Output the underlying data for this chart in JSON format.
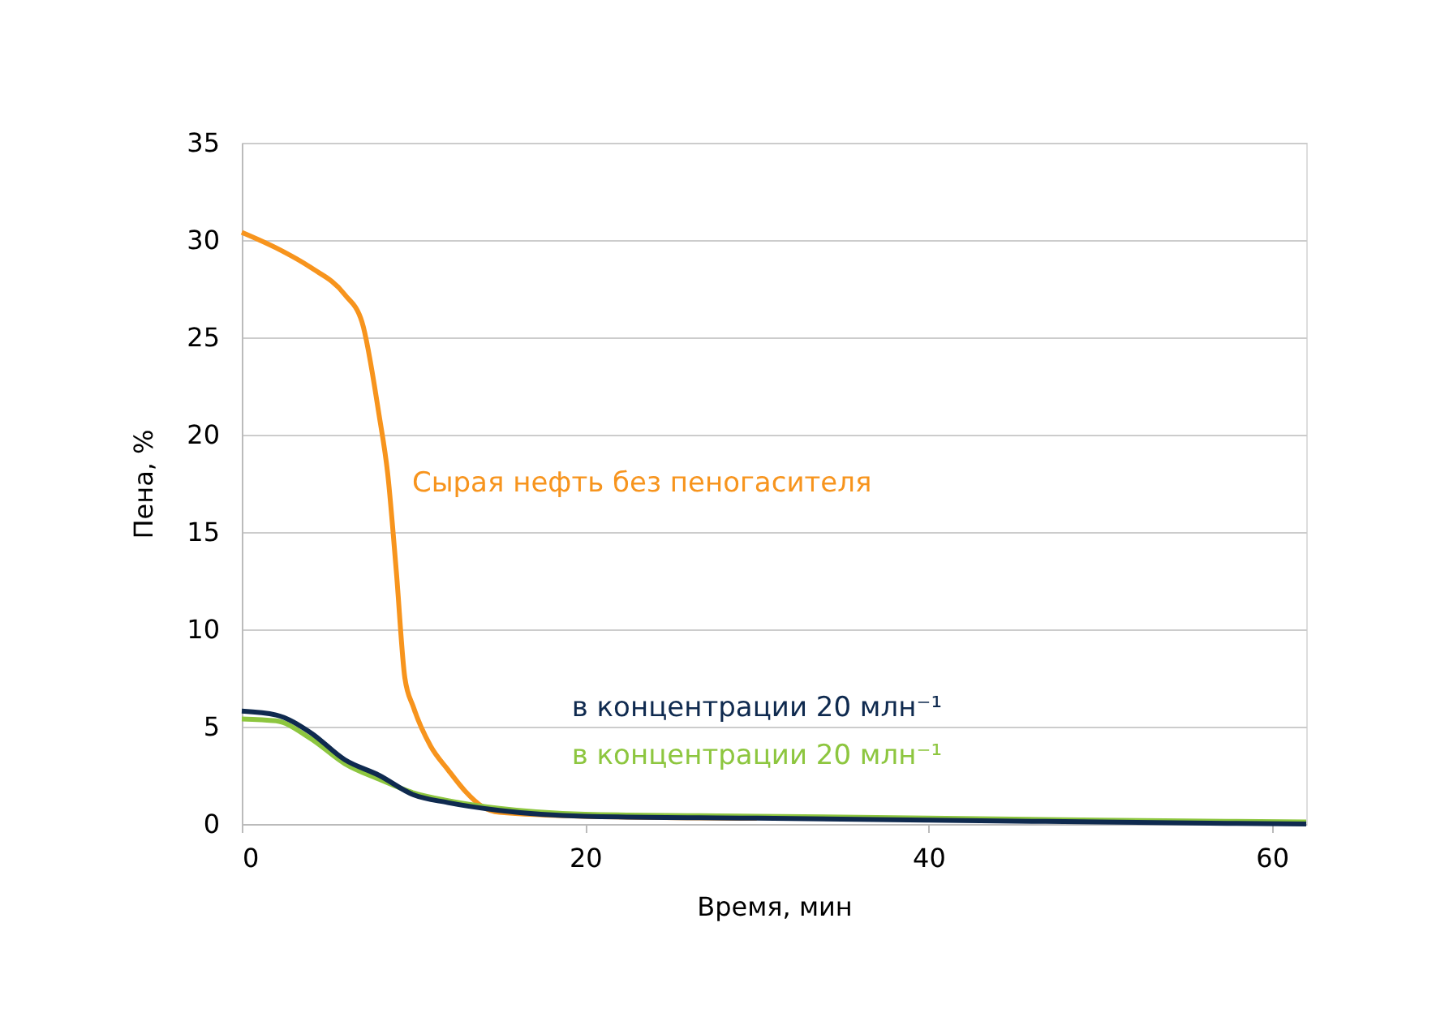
{
  "chart_data": {
    "type": "line",
    "xlabel": "Время, мин",
    "ylabel": "Пена, %",
    "xlim": [
      0,
      62
    ],
    "xticks": [
      0,
      20,
      40,
      60
    ],
    "ylim": [
      0,
      35
    ],
    "yticks": [
      0,
      5,
      10,
      15,
      20,
      25,
      30,
      35
    ],
    "grid": "y",
    "marker": "none",
    "line_style": "solid",
    "series": [
      {
        "name": "Сырая нефть без пеногасителя",
        "color": "#f7941d",
        "x": [
          0,
          2,
          4,
          6,
          7,
          8,
          8.5,
          9,
          9.5,
          10,
          11,
          12,
          13,
          14,
          15,
          20,
          30
        ],
        "values": [
          30.4,
          29.6,
          28.6,
          27.2,
          25.8,
          21,
          18,
          13,
          7.5,
          6,
          4,
          2.8,
          1.7,
          0.9,
          0.6,
          0.4,
          0.3
        ]
      },
      {
        "name": "в концентрации 20 млн⁻¹",
        "color": "#0f2a4f",
        "x": [
          0,
          2,
          4,
          6,
          8,
          10,
          12,
          15,
          20,
          30,
          40,
          50,
          62
        ],
        "values": [
          5.8,
          5.6,
          4.7,
          3.3,
          2.5,
          1.5,
          1.1,
          0.7,
          0.4,
          0.3,
          0.2,
          0.1,
          0
        ]
      },
      {
        "name": "в концентрации 20 млн⁻¹",
        "color": "#8dc63f",
        "x": [
          0,
          2,
          4,
          6,
          8,
          10,
          12,
          15,
          20,
          30,
          40,
          50,
          62
        ],
        "values": [
          5.4,
          5.3,
          4.4,
          3.1,
          2.3,
          1.6,
          1.2,
          0.8,
          0.5,
          0.4,
          0.3,
          0.2,
          0.1
        ]
      }
    ]
  }
}
